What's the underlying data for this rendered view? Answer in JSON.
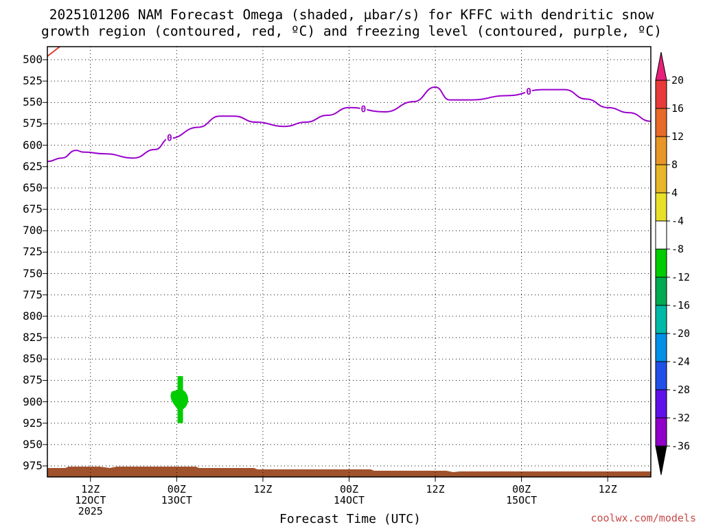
{
  "title": {
    "line1": "2025101206 NAM Forecast Omega (shaded, μbar/s) for KFFC with dendritic snow",
    "line2": "growth region (contoured, red, ºC) and freezing level (contoured, purple, ºC)"
  },
  "credit": "coolwx.com/models",
  "chart_data": {
    "type": "area",
    "xlabel": "Forecast Time (UTC)",
    "ylabel": "",
    "x_axis": {
      "range": [
        "2025-10-12 06Z",
        "2025-10-15 18Z"
      ],
      "ticks": [
        {
          "time": "2025-10-12 12Z",
          "lines": [
            "12Z",
            "12OCT",
            "2025"
          ]
        },
        {
          "time": "2025-10-13 00Z",
          "lines": [
            "00Z",
            "13OCT"
          ]
        },
        {
          "time": "2025-10-13 12Z",
          "lines": [
            "12Z"
          ]
        },
        {
          "time": "2025-10-14 00Z",
          "lines": [
            "00Z",
            "14OCT"
          ]
        },
        {
          "time": "2025-10-14 12Z",
          "lines": [
            "12Z"
          ]
        },
        {
          "time": "2025-10-15 00Z",
          "lines": [
            "00Z",
            "15OCT"
          ]
        },
        {
          "time": "2025-10-15 12Z",
          "lines": [
            "12Z"
          ]
        }
      ]
    },
    "y_axis": {
      "unit": "hPa",
      "inverted": true,
      "range": [
        495,
        980
      ],
      "ticks": [
        500,
        525,
        550,
        575,
        600,
        625,
        650,
        675,
        700,
        725,
        750,
        775,
        800,
        825,
        850,
        875,
        900,
        925,
        950,
        975
      ]
    },
    "grid": true,
    "freezing_level": {
      "color": "#9900cc",
      "label": "0",
      "points": [
        {
          "time": "2025-10-12 06Z",
          "p": 619
        },
        {
          "time": "2025-10-12 08Z",
          "p": 615
        },
        {
          "time": "2025-10-12 10Z",
          "p": 606
        },
        {
          "time": "2025-10-12 11Z",
          "p": 608
        },
        {
          "time": "2025-10-12 14Z",
          "p": 610
        },
        {
          "time": "2025-10-12 18Z",
          "p": 615
        },
        {
          "time": "2025-10-12 21Z",
          "p": 605
        },
        {
          "time": "2025-10-12 23Z",
          "p": 592
        },
        {
          "time": "2025-10-13 03Z",
          "p": 579
        },
        {
          "time": "2025-10-13 06Z",
          "p": 566
        },
        {
          "time": "2025-10-13 08Z",
          "p": 566
        },
        {
          "time": "2025-10-13 11Z",
          "p": 573
        },
        {
          "time": "2025-10-13 15Z",
          "p": 578
        },
        {
          "time": "2025-10-13 18Z",
          "p": 573
        },
        {
          "time": "2025-10-13 21Z",
          "p": 565
        },
        {
          "time": "2025-10-14 00Z",
          "p": 556
        },
        {
          "time": "2025-10-14 05Z",
          "p": 561
        },
        {
          "time": "2025-10-14 09Z",
          "p": 549
        },
        {
          "time": "2025-10-14 12Z",
          "p": 532
        },
        {
          "time": "2025-10-14 14Z",
          "p": 547
        },
        {
          "time": "2025-10-14 17Z",
          "p": 547
        },
        {
          "time": "2025-10-14 22Z",
          "p": 542
        },
        {
          "time": "2025-10-15 03Z",
          "p": 535
        },
        {
          "time": "2025-10-15 06Z",
          "p": 535
        },
        {
          "time": "2025-10-15 09Z",
          "p": 546
        },
        {
          "time": "2025-10-15 12Z",
          "p": 556
        },
        {
          "time": "2025-10-15 15Z",
          "p": 562
        },
        {
          "time": "2025-10-15 18Z",
          "p": 572
        }
      ],
      "labels_at": [
        "2025-10-12 23Z",
        "2025-10-14 02Z",
        "2025-10-15 01Z"
      ]
    },
    "dendritic_growth_region": {
      "color": "#e03a2a",
      "note": "only visible at top-left corner"
    },
    "omega_shaded": [
      {
        "time_center": "2025-10-13 00.5Z",
        "p_top": 870,
        "p_bottom": 925,
        "value_range": [
          -8,
          -4
        ],
        "color": "#00cc00"
      }
    ],
    "terrain": {
      "color": "#a0522d",
      "p_top_approx": 972
    },
    "colorbar": {
      "label_values": [
        20,
        16,
        12,
        8,
        4,
        -4,
        -8,
        -12,
        -16,
        -20,
        -24,
        -28,
        -32,
        -36
      ],
      "colors": [
        "#e8207a",
        "#e83a3a",
        "#e86a28",
        "#e89628",
        "#e8b628",
        "#e8e028",
        "#ffffff",
        "#00cc00",
        "#00aa50",
        "#00b8a8",
        "#0090e8",
        "#2050e8",
        "#6010e8",
        "#9000c8",
        "#a0a0a0",
        "#000000"
      ]
    }
  }
}
